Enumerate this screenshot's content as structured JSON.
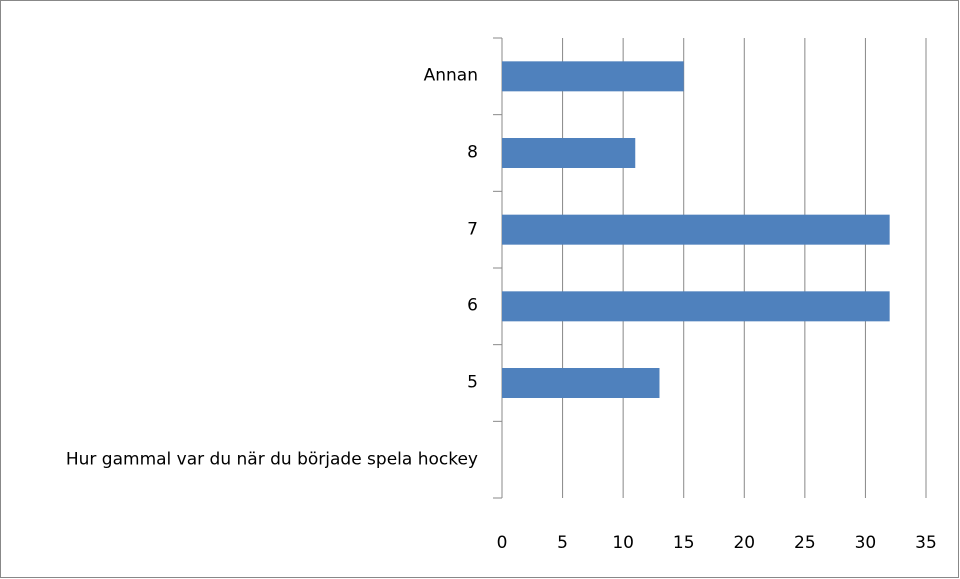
{
  "chart_data": {
    "type": "bar",
    "orientation": "horizontal",
    "categories": [
      "Hur gammal var du när du började spela hockey",
      "5",
      "6",
      "7",
      "8",
      "Annan"
    ],
    "values": [
      null,
      13,
      32,
      32,
      11,
      15
    ],
    "color": "#4f81bd",
    "xlim": [
      0,
      35
    ],
    "xticks": [
      0,
      5,
      10,
      15,
      20,
      25,
      30,
      35
    ],
    "grid": true
  }
}
